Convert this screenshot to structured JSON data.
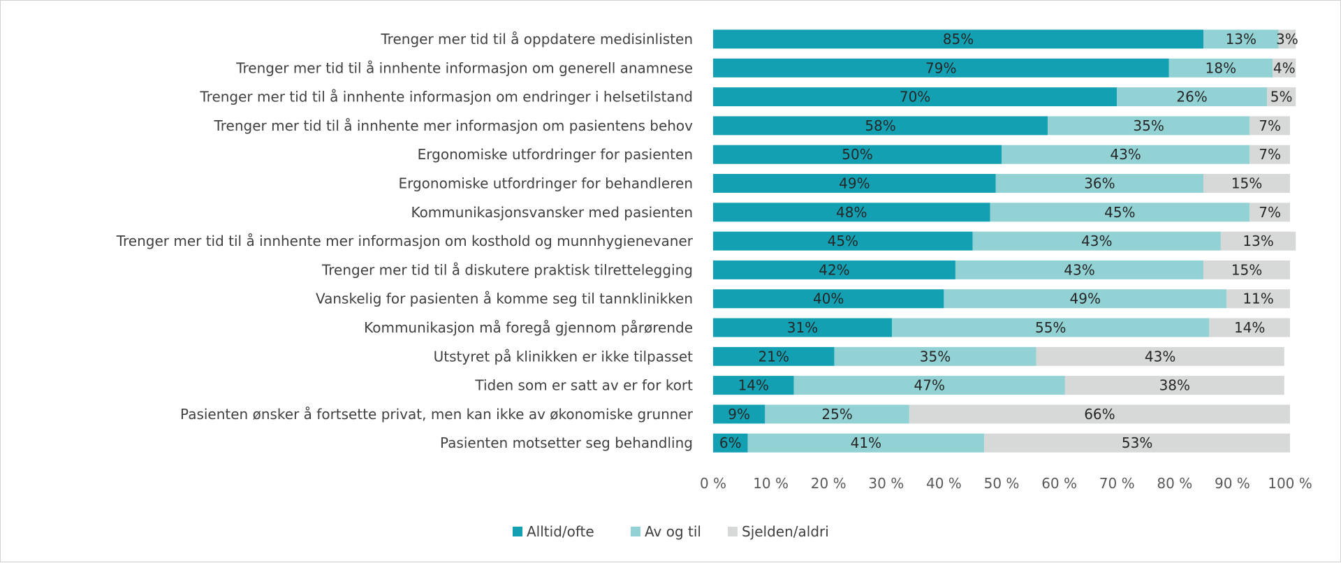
{
  "colors": {
    "series": [
      "#13a0b3",
      "#92d1d4",
      "#d7d8d8"
    ]
  },
  "chart_data": {
    "type": "bar",
    "orientation": "horizontal",
    "stacked": true,
    "title": "",
    "xlabel": "",
    "ylabel": "",
    "xlim": [
      0,
      100
    ],
    "x_ticks": [
      "0 %",
      "10 %",
      "20 %",
      "30 %",
      "40 %",
      "50 %",
      "60 %",
      "70 %",
      "80 %",
      "90 %",
      "100 %"
    ],
    "grid": false,
    "legend_position": "bottom",
    "categories": [
      "Trenger mer tid til å oppdatere medisinlisten",
      "Trenger mer tid til å innhente informasjon om generell anamnese",
      "Trenger mer tid til å innhente informasjon om endringer i helsetilstand",
      "Trenger mer tid til å innhente mer informasjon om pasientens behov",
      "Ergonomiske utfordringer for pasienten",
      "Ergonomiske utfordringer for behandleren",
      "Kommunikasjonsvansker med pasienten",
      "Trenger mer tid til å innhente mer informasjon om kosthold og munnhygienevaner",
      "Trenger mer tid til å diskutere praktisk tilrettelegging",
      "Vanskelig for pasienten å komme seg til tannklinikken",
      "Kommunikasjon må foregå gjennom pårørende",
      "Utstyret på klinikken er ikke tilpasset",
      "Tiden som er satt av er for kort",
      "Pasienten ønsker å fortsette privat, men kan ikke av økonomiske grunner",
      "Pasienten motsetter seg behandling"
    ],
    "series": [
      {
        "name": "Alltid/ofte",
        "values": [
          85,
          79,
          70,
          58,
          50,
          49,
          48,
          45,
          42,
          40,
          31,
          21,
          14,
          9,
          6
        ],
        "labels": [
          "85%",
          "79%",
          "70%",
          "58%",
          "50%",
          "49%",
          "48%",
          "45%",
          "42%",
          "40%",
          "31%",
          "21%",
          "14%",
          "9%",
          "6%"
        ]
      },
      {
        "name": "Av og til",
        "values": [
          13,
          18,
          26,
          35,
          43,
          36,
          45,
          43,
          43,
          49,
          55,
          35,
          47,
          25,
          41
        ],
        "labels": [
          "13%",
          "18%",
          "26%",
          "35%",
          "43%",
          "36%",
          "45%",
          "43%",
          "43%",
          "49%",
          "55%",
          "35%",
          "47%",
          "25%",
          "41%"
        ]
      },
      {
        "name": "Sjelden/aldri",
        "values": [
          3,
          4,
          5,
          7,
          7,
          15,
          7,
          13,
          15,
          11,
          14,
          43,
          38,
          66,
          53
        ],
        "labels": [
          "3%",
          "4%",
          "5%",
          "7%",
          "7%",
          "15%",
          "7%",
          "13%",
          "15%",
          "11%",
          "14%",
          "43%",
          "38%",
          "66%",
          "53%"
        ]
      }
    ]
  }
}
